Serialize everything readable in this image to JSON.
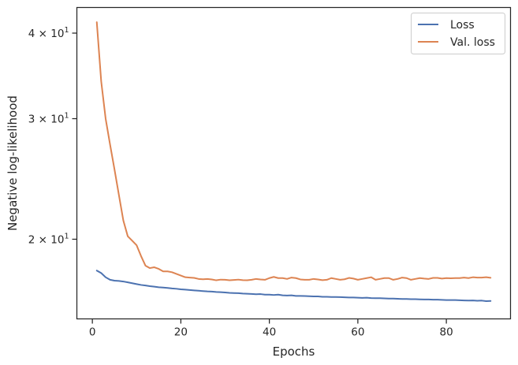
{
  "chart_data": {
    "type": "line",
    "title": "",
    "xlabel": "Epochs",
    "ylabel": "Negative log-likelihood",
    "yscale": "log",
    "xlim": [
      -3.5,
      94.5
    ],
    "ylim": [
      15.3,
      43.6
    ],
    "grid": false,
    "legend_position": "top-right",
    "xticks": [
      0,
      20,
      40,
      60,
      80
    ],
    "xtick_labels": [
      "0",
      "20",
      "40",
      "60",
      "80"
    ],
    "yticks": [
      20,
      30,
      40
    ],
    "ytick_labels": [
      {
        "base": "2 × 10",
        "exp": "1"
      },
      {
        "base": "3 × 10",
        "exp": "1"
      },
      {
        "base": "4 × 10",
        "exp": "1"
      }
    ],
    "series": [
      {
        "name": "Loss",
        "color": "#4c72b0",
        "x": [
          1,
          2,
          3,
          4,
          5,
          6,
          7,
          8,
          9,
          10,
          11,
          12,
          13,
          14,
          15,
          16,
          17,
          18,
          19,
          20,
          21,
          22,
          23,
          24,
          25,
          26,
          27,
          28,
          29,
          30,
          31,
          32,
          33,
          34,
          35,
          36,
          37,
          38,
          39,
          40,
          41,
          42,
          43,
          44,
          45,
          46,
          47,
          48,
          49,
          50,
          51,
          52,
          53,
          54,
          55,
          56,
          57,
          58,
          59,
          60,
          61,
          62,
          63,
          64,
          65,
          66,
          67,
          68,
          69,
          70,
          71,
          72,
          73,
          74,
          75,
          76,
          77,
          78,
          79,
          80,
          81,
          82,
          83,
          84,
          85,
          86,
          87,
          88,
          89,
          90
        ],
        "y": [
          18.0,
          17.85,
          17.6,
          17.45,
          17.4,
          17.38,
          17.35,
          17.3,
          17.25,
          17.2,
          17.15,
          17.12,
          17.08,
          17.05,
          17.02,
          17.0,
          16.98,
          16.95,
          16.93,
          16.9,
          16.88,
          16.86,
          16.84,
          16.82,
          16.8,
          16.78,
          16.77,
          16.75,
          16.74,
          16.72,
          16.7,
          16.69,
          16.68,
          16.66,
          16.65,
          16.64,
          16.62,
          16.63,
          16.6,
          16.6,
          16.58,
          16.6,
          16.56,
          16.55,
          16.56,
          16.53,
          16.53,
          16.52,
          16.51,
          16.5,
          16.5,
          16.48,
          16.48,
          16.47,
          16.47,
          16.46,
          16.45,
          16.44,
          16.44,
          16.43,
          16.42,
          16.43,
          16.41,
          16.4,
          16.4,
          16.39,
          16.38,
          16.38,
          16.37,
          16.36,
          16.36,
          16.35,
          16.35,
          16.34,
          16.33,
          16.33,
          16.32,
          16.32,
          16.31,
          16.3,
          16.3,
          16.3,
          16.29,
          16.28,
          16.27,
          16.28,
          16.26,
          16.27,
          16.24,
          16.25
        ]
      },
      {
        "name": "Val. loss",
        "color": "#dd8452",
        "x": [
          1,
          2,
          3,
          4,
          5,
          6,
          7,
          8,
          9,
          10,
          11,
          12,
          13,
          14,
          15,
          16,
          17,
          18,
          19,
          20,
          21,
          22,
          23,
          24,
          25,
          26,
          27,
          28,
          29,
          30,
          31,
          32,
          33,
          34,
          35,
          36,
          37,
          38,
          39,
          40,
          41,
          42,
          43,
          44,
          45,
          46,
          47,
          48,
          49,
          50,
          51,
          52,
          53,
          54,
          55,
          56,
          57,
          58,
          59,
          60,
          61,
          62,
          63,
          64,
          65,
          66,
          67,
          68,
          69,
          70,
          71,
          72,
          73,
          74,
          75,
          76,
          77,
          78,
          79,
          80,
          81,
          82,
          83,
          84,
          85,
          86,
          87,
          88,
          89,
          90
        ],
        "y": [
          41.5,
          34.0,
          30.0,
          27.5,
          25.3,
          23.2,
          21.3,
          20.2,
          19.9,
          19.6,
          18.9,
          18.3,
          18.15,
          18.2,
          18.1,
          17.95,
          17.95,
          17.9,
          17.8,
          17.7,
          17.6,
          17.58,
          17.56,
          17.5,
          17.48,
          17.5,
          17.47,
          17.42,
          17.46,
          17.45,
          17.42,
          17.44,
          17.46,
          17.43,
          17.42,
          17.45,
          17.5,
          17.47,
          17.45,
          17.55,
          17.62,
          17.55,
          17.55,
          17.5,
          17.58,
          17.55,
          17.47,
          17.45,
          17.45,
          17.5,
          17.47,
          17.43,
          17.45,
          17.55,
          17.5,
          17.45,
          17.48,
          17.56,
          17.52,
          17.45,
          17.5,
          17.55,
          17.6,
          17.45,
          17.5,
          17.55,
          17.55,
          17.45,
          17.5,
          17.58,
          17.55,
          17.45,
          17.5,
          17.55,
          17.52,
          17.5,
          17.56,
          17.56,
          17.52,
          17.55,
          17.54,
          17.55,
          17.55,
          17.58,
          17.55,
          17.6,
          17.58,
          17.58,
          17.6,
          17.57
        ]
      }
    ]
  }
}
